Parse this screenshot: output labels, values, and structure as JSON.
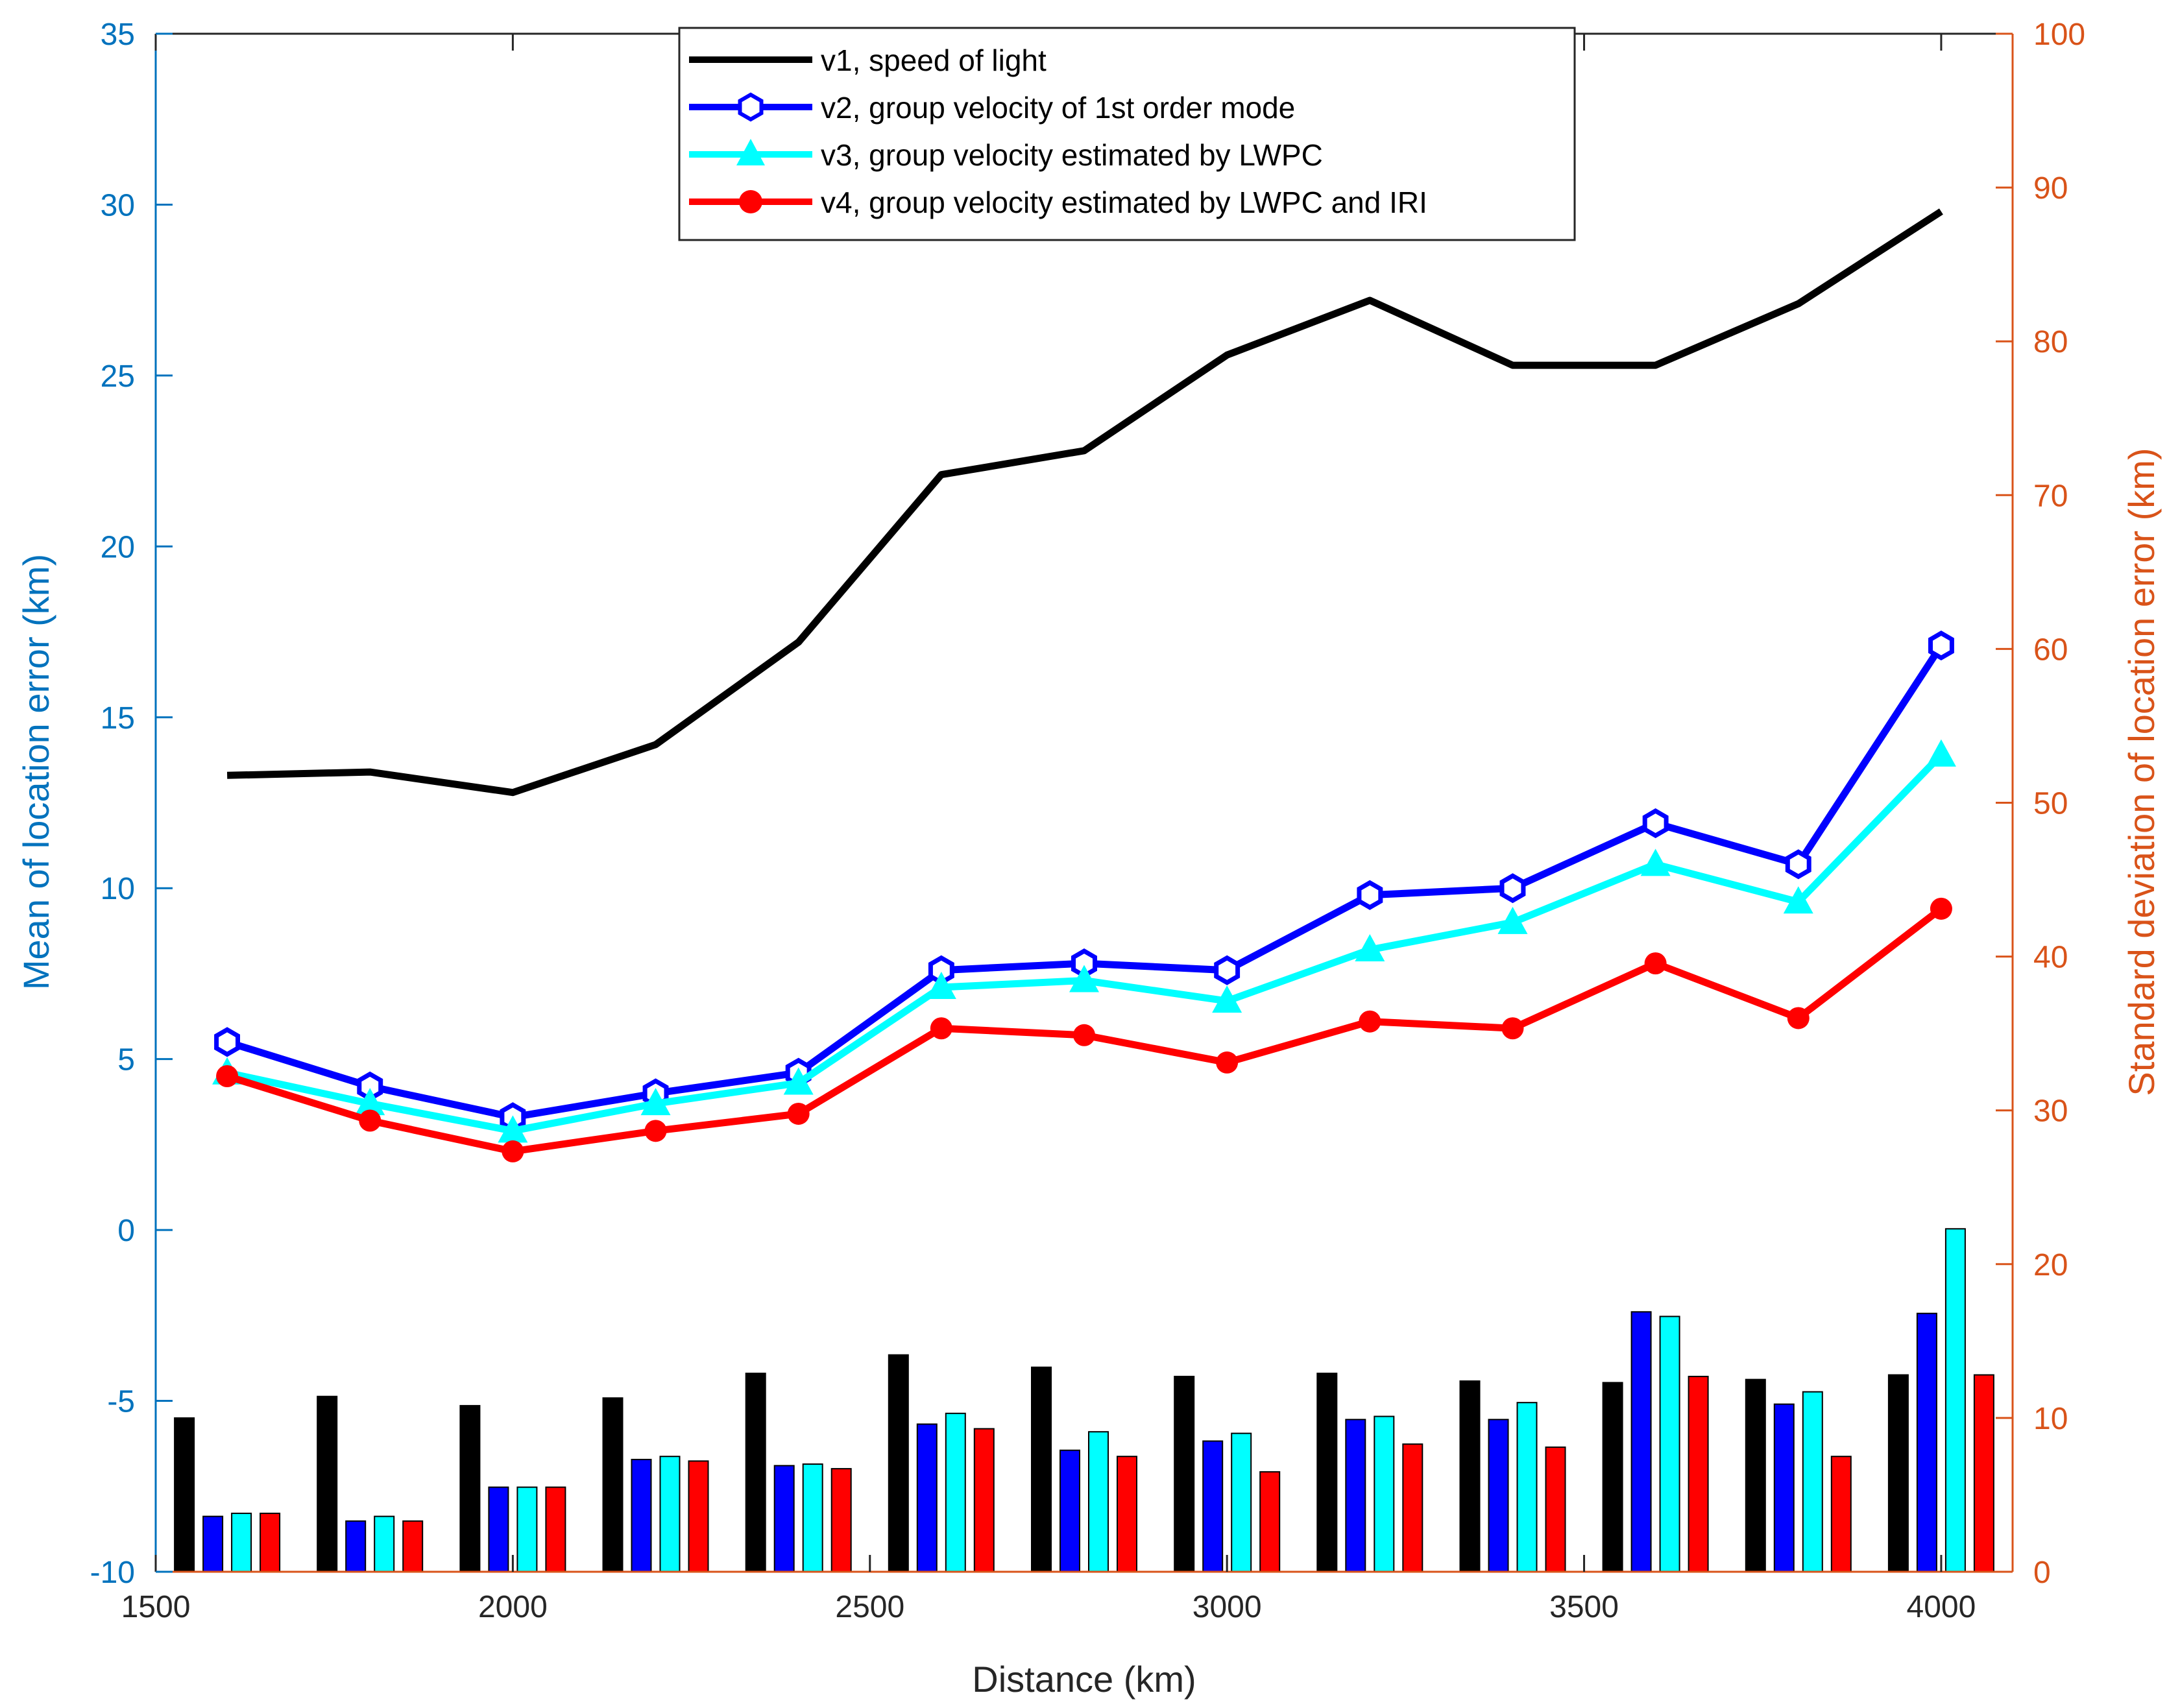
{
  "chart_data": {
    "type": "line+bar (dual axis)",
    "x": [
      1600,
      1800,
      2000,
      2200,
      2400,
      2600,
      2800,
      3000,
      3200,
      3400,
      3600,
      3800,
      4000
    ],
    "xlabel": "Distance (km)",
    "xlim": [
      1500,
      4100
    ],
    "xticks": [
      "1500",
      "2000",
      "2500",
      "3000",
      "3500",
      "4000"
    ],
    "ylabel_left": "Mean of location error (km)",
    "ylim_left": [
      -10,
      35
    ],
    "yticks_left": [
      "-10",
      "-5",
      "0",
      "5",
      "10",
      "15",
      "20",
      "25",
      "30",
      "35"
    ],
    "ylabel_right": "Standard deviation of location error (km)",
    "ylim_right": [
      0,
      100
    ],
    "yticks_right": [
      "0",
      "10",
      "20",
      "30",
      "40",
      "50",
      "60",
      "70",
      "80",
      "90",
      "100"
    ],
    "lines": [
      {
        "name": "v1, speed of light",
        "color": "#000000",
        "marker": "none",
        "values": [
          13.3,
          13.4,
          12.8,
          14.2,
          17.2,
          22.1,
          22.8,
          25.6,
          27.2,
          25.3,
          25.3,
          27.1,
          29.8
        ]
      },
      {
        "name": "v2, group velocity of 1st order mode",
        "color": "#0000FF",
        "marker": "hexagon",
        "values": [
          5.5,
          4.2,
          3.3,
          4.0,
          4.6,
          7.6,
          7.8,
          7.6,
          9.8,
          10.0,
          11.9,
          10.7,
          17.1
        ]
      },
      {
        "name": "v3, group velocity estimated by LWPC",
        "color": "#00FFFF",
        "marker": "triangle",
        "values": [
          4.6,
          3.7,
          2.9,
          3.7,
          4.3,
          7.1,
          7.3,
          6.7,
          8.2,
          9.0,
          10.7,
          9.6,
          13.9
        ]
      },
      {
        "name": "v4, group velocity estimated by LWPC and IRI",
        "color": "#FF0000",
        "marker": "circle",
        "values": [
          4.5,
          3.2,
          2.3,
          2.9,
          3.4,
          5.9,
          5.7,
          4.9,
          6.1,
          5.9,
          7.8,
          6.2,
          9.4
        ]
      }
    ],
    "bars": [
      {
        "name": "v1",
        "color": "#000000",
        "values": [
          10.0,
          11.4,
          10.8,
          11.3,
          12.9,
          14.1,
          13.3,
          12.7,
          12.9,
          12.4,
          12.3,
          12.5,
          12.8
        ]
      },
      {
        "name": "v2",
        "color": "#0000FF",
        "values": [
          3.6,
          3.3,
          5.5,
          7.3,
          6.9,
          9.6,
          7.9,
          8.5,
          9.9,
          9.9,
          16.9,
          10.9,
          16.8
        ]
      },
      {
        "name": "v3",
        "color": "#00FFFF",
        "values": [
          3.8,
          3.6,
          5.5,
          7.5,
          7.0,
          10.3,
          9.1,
          9.0,
          10.1,
          11.0,
          16.6,
          11.7,
          22.3
        ]
      },
      {
        "name": "v4",
        "color": "#FF0000",
        "values": [
          3.8,
          3.3,
          5.5,
          7.2,
          6.7,
          9.3,
          7.5,
          6.5,
          8.3,
          8.1,
          12.7,
          7.5,
          12.8
        ]
      }
    ],
    "legend": [
      "v1, speed of light",
      "v2, group velocity of 1st order mode",
      "v3, group velocity estimated by LWPC",
      "v4, group velocity estimated by LWPC and IRI"
    ],
    "legend_position": "top-center",
    "colors": {
      "left_axis": "#0072BD",
      "right_axis": "#D95319",
      "frame": "#262626"
    }
  }
}
